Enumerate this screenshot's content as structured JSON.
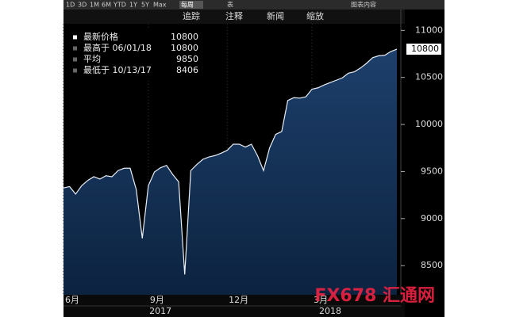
{
  "toolbar": {
    "ranges": [
      "1D",
      "3D",
      "1M",
      "6M",
      "YTD",
      "1Y",
      "5Y",
      "Max"
    ],
    "period": "每周",
    "table": "表",
    "content": "图表内容",
    "tools": [
      "追踪",
      "注释",
      "新闻",
      "缩放"
    ]
  },
  "watermark": "FX678 汇通网",
  "chart_data": {
    "type": "area",
    "categories": [
      "6月",
      null,
      null,
      null,
      null,
      null,
      null,
      null,
      null,
      null,
      null,
      null,
      null,
      null,
      "9月",
      null,
      null,
      null,
      null,
      null,
      null,
      null,
      null,
      null,
      null,
      null,
      null,
      "12月",
      null,
      null,
      null,
      null,
      null,
      null,
      null,
      null,
      null,
      null,
      null,
      null,
      null,
      "3月",
      null,
      null,
      null,
      null,
      null,
      null,
      null,
      null,
      null,
      null,
      null,
      null,
      null,
      null
    ],
    "year_labels": [
      {
        "value": 16,
        "label": "2017"
      },
      {
        "value": 44,
        "label": "2018"
      }
    ],
    "series": [
      {
        "name": "最新价格",
        "color": "#e8eef6",
        "values": [
          9325,
          9340,
          9260,
          9350,
          9405,
          9445,
          9420,
          9455,
          9445,
          9510,
          9535,
          9535,
          9310,
          8790,
          9350,
          9495,
          9540,
          9565,
          9470,
          9390,
          8406,
          9510,
          9575,
          9630,
          9655,
          9670,
          9695,
          9725,
          9790,
          9790,
          9760,
          9790,
          9670,
          9510,
          9750,
          9895,
          9925,
          10255,
          10285,
          10280,
          10295,
          10375,
          10390,
          10420,
          10445,
          10470,
          10495,
          10545,
          10560,
          10600,
          10650,
          10710,
          10730,
          10735,
          10775,
          10800
        ]
      }
    ],
    "last_label": 10800,
    "legend_box": [
      {
        "label": "最新价格",
        "value": 10800
      },
      {
        "label": "最高于 06/01/18",
        "value": 10800
      },
      {
        "label": "平均",
        "value": 9850
      },
      {
        "label": "最低于 10/13/17",
        "value": 8406
      }
    ],
    "ylim": [
      8190,
      11070
    ],
    "yticks": [
      8500,
      9000,
      9500,
      10000,
      10500,
      11000
    ]
  }
}
